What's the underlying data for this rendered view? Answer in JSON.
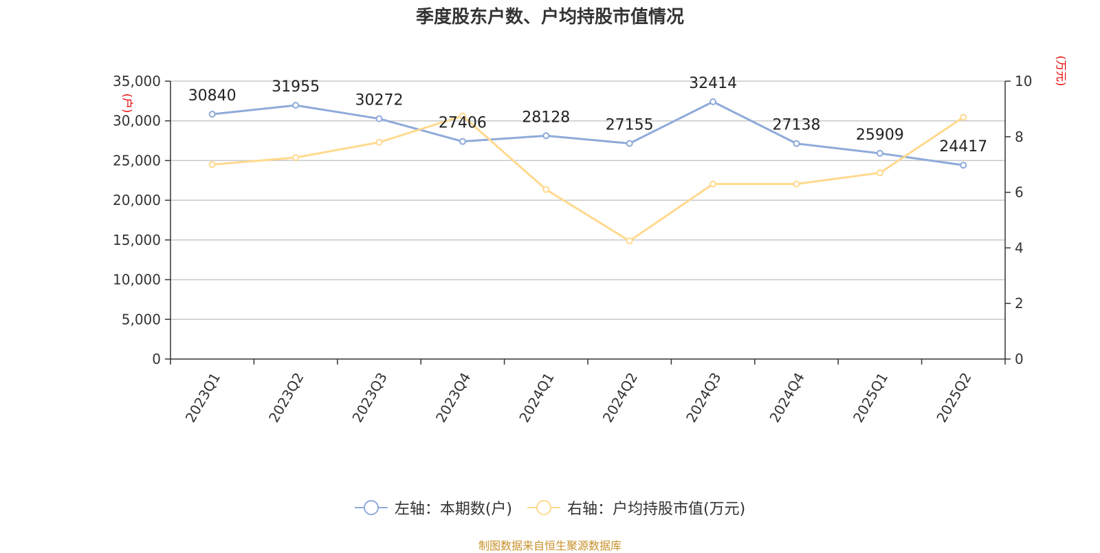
{
  "chart_data": {
    "type": "line",
    "title": "季度股东户数、户均持股市值情况",
    "categories": [
      "2023Q1",
      "2023Q2",
      "2023Q3",
      "2023Q4",
      "2024Q1",
      "2024Q2",
      "2024Q3",
      "2024Q4",
      "2025Q1",
      "2025Q2"
    ],
    "series": [
      {
        "name": "左轴：本期数(户)",
        "axis": "left",
        "color": "#8eaad9",
        "values": [
          30840,
          31955,
          30272,
          27406,
          28128,
          27155,
          32414,
          27138,
          25909,
          24417
        ],
        "labels": [
          "30840",
          "31955",
          "30272",
          "27406",
          "28128",
          "27155",
          "32414",
          "27138",
          "25909",
          "24417"
        ]
      },
      {
        "name": "右轴：户均持股市值(万元)",
        "axis": "right",
        "color": "#ffd98e",
        "values": [
          7.0,
          7.25,
          7.8,
          8.75,
          6.1,
          4.25,
          6.3,
          6.3,
          6.7,
          8.7
        ]
      }
    ],
    "left_axis": {
      "unit": "(户)",
      "min": 0,
      "max": 35000,
      "ticks": [
        0,
        5000,
        10000,
        15000,
        20000,
        25000,
        30000,
        35000
      ],
      "tick_labels": [
        "0",
        "5,000",
        "10,000",
        "15,000",
        "20,000",
        "25,000",
        "30,000",
        "35,000"
      ]
    },
    "right_axis": {
      "unit": "(万元)",
      "min": 0,
      "max": 10,
      "ticks": [
        0,
        2,
        4,
        6,
        8,
        10
      ],
      "tick_labels": [
        "0",
        "2",
        "4",
        "6",
        "8",
        "10"
      ]
    },
    "grid": true,
    "legend_position": "bottom-center"
  },
  "legend": {
    "left_series_label": "左轴：本期数(户)",
    "right_series_label": "右轴：户均持股市值(万元)"
  },
  "source_text": "制图数据来自恒生聚源数据库"
}
